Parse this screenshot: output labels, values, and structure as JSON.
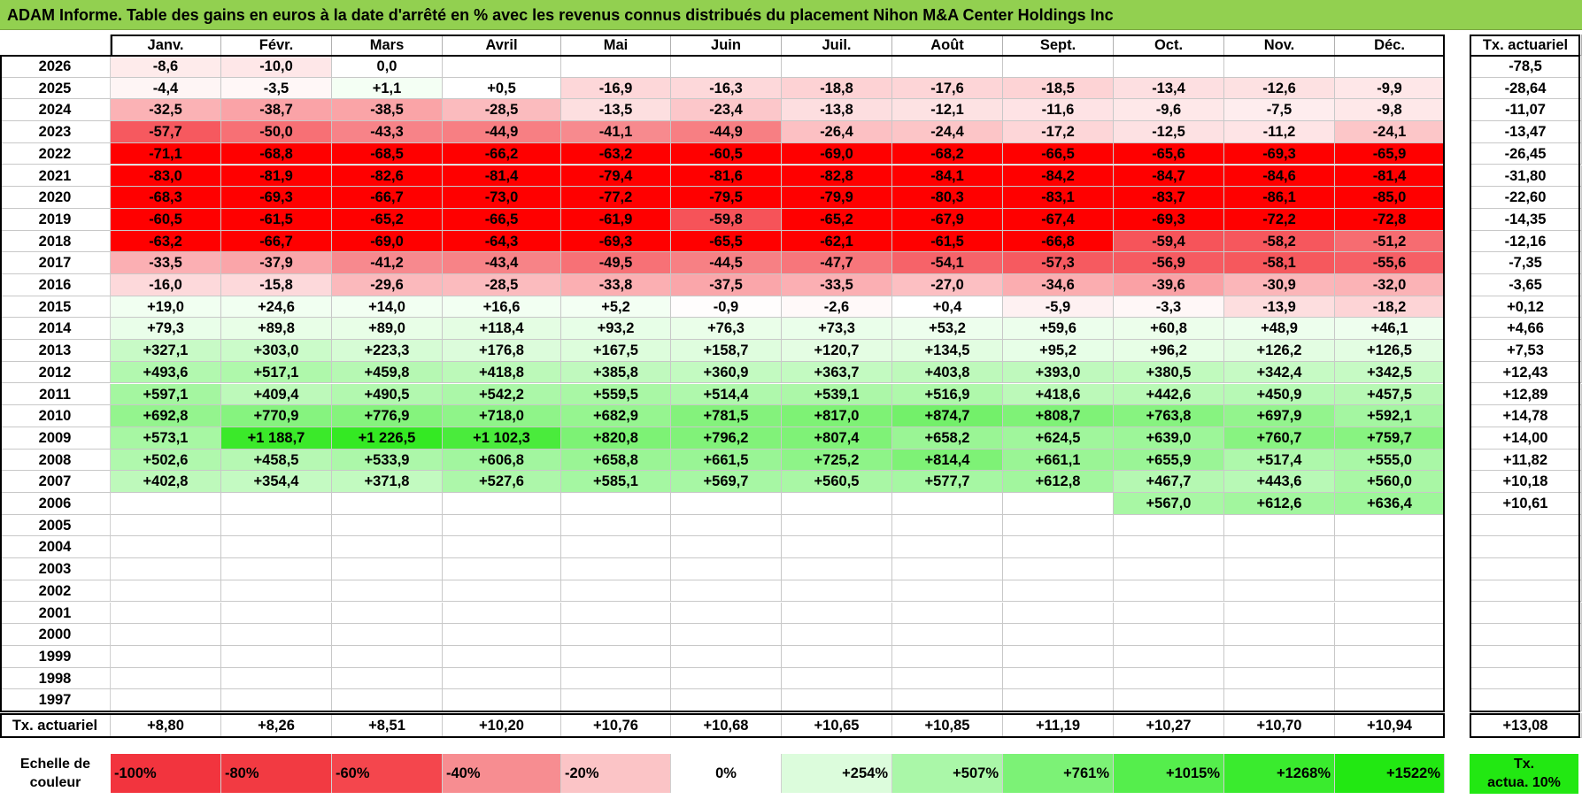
{
  "title": "ADAM Informe. Table des gains en euros à la date d'arrêté en % avec les revenus connus distribués du placement Nihon M&A Center Holdings Inc",
  "months": [
    "Janv.",
    "Févr.",
    "Mars",
    "Avril",
    "Mai",
    "Juin",
    "Juil.",
    "Août",
    "Sept.",
    "Oct.",
    "Nov.",
    "Déc."
  ],
  "annual_header": "Tx. actuariel",
  "rows": [
    {
      "year": "2026",
      "values": [
        "-8,6",
        "-10,0",
        "0,0",
        "",
        "",
        "",
        "",
        "",
        "",
        "",
        "",
        ""
      ],
      "annual": "-78,5"
    },
    {
      "year": "2025",
      "values": [
        "-4,4",
        "-3,5",
        "+1,1",
        "+0,5",
        "-16,9",
        "-16,3",
        "-18,8",
        "-17,6",
        "-18,5",
        "-13,4",
        "-12,6",
        "-9,9"
      ],
      "annual": "-28,64"
    },
    {
      "year": "2024",
      "values": [
        "-32,5",
        "-38,7",
        "-38,5",
        "-28,5",
        "-13,5",
        "-23,4",
        "-13,8",
        "-12,1",
        "-11,6",
        "-9,6",
        "-7,5",
        "-9,8"
      ],
      "annual": "-11,07"
    },
    {
      "year": "2023",
      "values": [
        "-57,7",
        "-50,0",
        "-43,3",
        "-44,9",
        "-41,1",
        "-44,9",
        "-26,4",
        "-24,4",
        "-17,2",
        "-12,5",
        "-11,2",
        "-24,1"
      ],
      "annual": "-13,47"
    },
    {
      "year": "2022",
      "values": [
        "-71,1",
        "-68,8",
        "-68,5",
        "-66,2",
        "-63,2",
        "-60,5",
        "-69,0",
        "-68,2",
        "-66,5",
        "-65,6",
        "-69,3",
        "-65,9"
      ],
      "annual": "-26,45"
    },
    {
      "year": "2021",
      "values": [
        "-83,0",
        "-81,9",
        "-82,6",
        "-81,4",
        "-79,4",
        "-81,6",
        "-82,8",
        "-84,1",
        "-84,2",
        "-84,7",
        "-84,6",
        "-81,4"
      ],
      "annual": "-31,80"
    },
    {
      "year": "2020",
      "values": [
        "-68,3",
        "-69,3",
        "-66,7",
        "-73,0",
        "-77,2",
        "-79,5",
        "-79,9",
        "-80,3",
        "-83,1",
        "-83,7",
        "-86,1",
        "-85,0"
      ],
      "annual": "-22,60"
    },
    {
      "year": "2019",
      "values": [
        "-60,5",
        "-61,5",
        "-65,2",
        "-66,5",
        "-61,9",
        "-59,8",
        "-65,2",
        "-67,9",
        "-67,4",
        "-69,3",
        "-72,2",
        "-72,8"
      ],
      "annual": "-14,35"
    },
    {
      "year": "2018",
      "values": [
        "-63,2",
        "-66,7",
        "-69,0",
        "-64,3",
        "-69,3",
        "-65,5",
        "-62,1",
        "-61,5",
        "-66,8",
        "-59,4",
        "-58,2",
        "-51,2"
      ],
      "annual": "-12,16"
    },
    {
      "year": "2017",
      "values": [
        "-33,5",
        "-37,9",
        "-41,2",
        "-43,4",
        "-49,5",
        "-44,5",
        "-47,7",
        "-54,1",
        "-57,3",
        "-56,9",
        "-58,1",
        "-55,6"
      ],
      "annual": "-7,35"
    },
    {
      "year": "2016",
      "values": [
        "-16,0",
        "-15,8",
        "-29,6",
        "-28,5",
        "-33,8",
        "-37,5",
        "-33,5",
        "-27,0",
        "-34,6",
        "-39,6",
        "-30,9",
        "-32,0"
      ],
      "annual": "-3,65"
    },
    {
      "year": "2015",
      "values": [
        "+19,0",
        "+24,6",
        "+14,0",
        "+16,6",
        "+5,2",
        "-0,9",
        "-2,6",
        "+0,4",
        "-5,9",
        "-3,3",
        "-13,9",
        "-18,2"
      ],
      "annual": "+0,12"
    },
    {
      "year": "2014",
      "values": [
        "+79,3",
        "+89,8",
        "+89,0",
        "+118,4",
        "+93,2",
        "+76,3",
        "+73,3",
        "+53,2",
        "+59,6",
        "+60,8",
        "+48,9",
        "+46,1"
      ],
      "annual": "+4,66"
    },
    {
      "year": "2013",
      "values": [
        "+327,1",
        "+303,0",
        "+223,3",
        "+176,8",
        "+167,5",
        "+158,7",
        "+120,7",
        "+134,5",
        "+95,2",
        "+96,2",
        "+126,2",
        "+126,5"
      ],
      "annual": "+7,53"
    },
    {
      "year": "2012",
      "values": [
        "+493,6",
        "+517,1",
        "+459,8",
        "+418,8",
        "+385,8",
        "+360,9",
        "+363,7",
        "+403,8",
        "+393,0",
        "+380,5",
        "+342,4",
        "+342,5"
      ],
      "annual": "+12,43"
    },
    {
      "year": "2011",
      "values": [
        "+597,1",
        "+409,4",
        "+490,5",
        "+542,2",
        "+559,5",
        "+514,4",
        "+539,1",
        "+516,9",
        "+418,6",
        "+442,6",
        "+450,9",
        "+457,5"
      ],
      "annual": "+12,89"
    },
    {
      "year": "2010",
      "values": [
        "+692,8",
        "+770,9",
        "+776,9",
        "+718,0",
        "+682,9",
        "+781,5",
        "+817,0",
        "+874,7",
        "+808,7",
        "+763,8",
        "+697,9",
        "+592,1"
      ],
      "annual": "+14,78"
    },
    {
      "year": "2009",
      "values": [
        "+573,1",
        "+1 188,7",
        "+1 226,5",
        "+1 102,3",
        "+820,8",
        "+796,2",
        "+807,4",
        "+658,2",
        "+624,5",
        "+639,0",
        "+760,7",
        "+759,7"
      ],
      "annual": "+14,00"
    },
    {
      "year": "2008",
      "values": [
        "+502,6",
        "+458,5",
        "+533,9",
        "+606,8",
        "+658,8",
        "+661,5",
        "+725,2",
        "+814,4",
        "+661,1",
        "+655,9",
        "+517,4",
        "+555,0"
      ],
      "annual": "+11,82"
    },
    {
      "year": "2007",
      "values": [
        "+402,8",
        "+354,4",
        "+371,8",
        "+527,6",
        "+585,1",
        "+569,7",
        "+560,5",
        "+577,7",
        "+612,8",
        "+467,7",
        "+443,6",
        "+560,0"
      ],
      "annual": "+10,18"
    },
    {
      "year": "2006",
      "values": [
        "",
        "",
        "",
        "",
        "",
        "",
        "",
        "",
        "",
        "+567,0",
        "+612,6",
        "+636,4"
      ],
      "annual": "+10,61"
    },
    {
      "year": "2005",
      "values": [
        "",
        "",
        "",
        "",
        "",
        "",
        "",
        "",
        "",
        "",
        "",
        ""
      ],
      "annual": ""
    },
    {
      "year": "2004",
      "values": [
        "",
        "",
        "",
        "",
        "",
        "",
        "",
        "",
        "",
        "",
        "",
        ""
      ],
      "annual": ""
    },
    {
      "year": "2003",
      "values": [
        "",
        "",
        "",
        "",
        "",
        "",
        "",
        "",
        "",
        "",
        "",
        ""
      ],
      "annual": ""
    },
    {
      "year": "2002",
      "values": [
        "",
        "",
        "",
        "",
        "",
        "",
        "",
        "",
        "",
        "",
        "",
        ""
      ],
      "annual": ""
    },
    {
      "year": "2001",
      "values": [
        "",
        "",
        "",
        "",
        "",
        "",
        "",
        "",
        "",
        "",
        "",
        ""
      ],
      "annual": ""
    },
    {
      "year": "2000",
      "values": [
        "",
        "",
        "",
        "",
        "",
        "",
        "",
        "",
        "",
        "",
        "",
        ""
      ],
      "annual": ""
    },
    {
      "year": "1999",
      "values": [
        "",
        "",
        "",
        "",
        "",
        "",
        "",
        "",
        "",
        "",
        "",
        ""
      ],
      "annual": ""
    },
    {
      "year": "1998",
      "values": [
        "",
        "",
        "",
        "",
        "",
        "",
        "",
        "",
        "",
        "",
        "",
        ""
      ],
      "annual": ""
    },
    {
      "year": "1997",
      "values": [
        "",
        "",
        "",
        "",
        "",
        "",
        "",
        "",
        "",
        "",
        "",
        ""
      ],
      "annual": ""
    }
  ],
  "footer": {
    "label": "Tx. actuariel",
    "values": [
      "+8,80",
      "+8,26",
      "+8,51",
      "+10,20",
      "+10,76",
      "+10,68",
      "+10,65",
      "+10,85",
      "+11,19",
      "+10,27",
      "+10,70",
      "+10,94"
    ],
    "annual": "+13,08"
  },
  "scale": {
    "label_line1": "Echelle de",
    "label_line2": "couleur",
    "entries": [
      {
        "text": "-100%",
        "color": "#f2343e",
        "align": "left"
      },
      {
        "text": "-80%",
        "color": "#f23a42",
        "align": "left"
      },
      {
        "text": "-60%",
        "color": "#f4464d",
        "align": "left"
      },
      {
        "text": "-40%",
        "color": "#f78d91",
        "align": "left"
      },
      {
        "text": "-20%",
        "color": "#fbc4c6",
        "align": "left"
      },
      {
        "text": "0%",
        "color": "#ffffff",
        "align": "center"
      },
      {
        "text": "+254%",
        "color": "#dcfcdc",
        "align": "right"
      },
      {
        "text": "+507%",
        "color": "#aaf7a8",
        "align": "right"
      },
      {
        "text": "+761%",
        "color": "#7cf276",
        "align": "right"
      },
      {
        "text": "+1015%",
        "color": "#55ee4c",
        "align": "right"
      },
      {
        "text": "+1268%",
        "color": "#3aeb2e",
        "align": "right"
      },
      {
        "text": "+1522%",
        "color": "#22e812",
        "align": "right"
      }
    ],
    "rate_line1": "Tx.",
    "rate_line2": "actua. 10%",
    "rate_color": "#22e812"
  },
  "colors": {
    "title_bg": "#92d050",
    "negative_full": "#ff0000",
    "positive_full": "#18e60a"
  }
}
